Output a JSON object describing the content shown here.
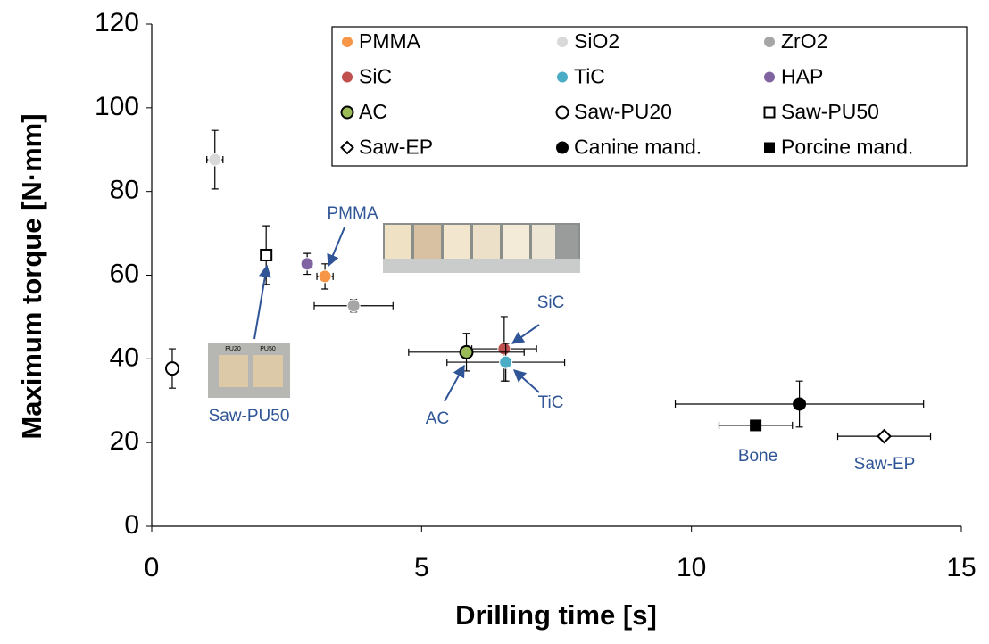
{
  "chart_data": {
    "type": "scatter",
    "x_label": "Drilling time [s]",
    "y_label": "Maximum torque [N·mm]",
    "xlim": [
      0,
      15
    ],
    "xticks": [
      0,
      5,
      10,
      15
    ],
    "ylim": [
      0,
      120
    ],
    "yticks": [
      0,
      20,
      40,
      60,
      80,
      100,
      120
    ],
    "grid": false,
    "legend": "upper right",
    "series": [
      {
        "name": "PMMA",
        "color": "#f79646",
        "marker": "circle-filled",
        "x": [
          3.21
        ],
        "values": [
          59.7
        ],
        "xerr": [
          0.15
        ],
        "yerr": [
          3
        ]
      },
      {
        "name": "SiO2",
        "color": "#d9d9d9",
        "marker": "circle-filled",
        "x": [
          1.17
        ],
        "values": [
          87.6
        ],
        "xerr": [
          0.15
        ],
        "yerr": [
          7
        ]
      },
      {
        "name": "ZrO2",
        "color": "#a6a6a6",
        "marker": "circle-filled",
        "x": [
          3.74
        ],
        "values": [
          52.7
        ],
        "xerr": [
          0.73
        ],
        "yerr": [
          1.5
        ]
      },
      {
        "name": "SiC",
        "color": "#c0504d",
        "marker": "circle-filled",
        "x": [
          6.53
        ],
        "values": [
          42.4
        ],
        "xerr": [
          0.6
        ],
        "yerr": [
          7.7
        ]
      },
      {
        "name": "TiC",
        "color": "#4bacc6",
        "marker": "circle-filled",
        "x": [
          6.56
        ],
        "values": [
          39.2
        ],
        "xerr": [
          1.09
        ],
        "yerr": [
          4.5
        ]
      },
      {
        "name": "HAP",
        "color": "#8064a2",
        "marker": "circle-filled",
        "x": [
          2.88
        ],
        "values": [
          62.7
        ],
        "xerr": [
          0.1
        ],
        "yerr": [
          2.5
        ]
      },
      {
        "name": "AC",
        "color": "#9bbb59",
        "marker": "circle-edged",
        "x": [
          5.83
        ],
        "values": [
          41.6
        ],
        "xerr": [
          1.07
        ],
        "yerr": [
          4.5
        ]
      },
      {
        "name": "Saw-PU20",
        "color": "#000000",
        "marker": "circle-open",
        "x": [
          0.38
        ],
        "values": [
          37.7
        ],
        "xerr": [
          0
        ],
        "yerr": [
          4.7
        ]
      },
      {
        "name": "Saw-PU50",
        "color": "#000000",
        "marker": "square-open",
        "x": [
          2.12
        ],
        "values": [
          64.8
        ],
        "xerr": [
          0
        ],
        "yerr": [
          7
        ]
      },
      {
        "name": "Saw-EP",
        "color": "#000000",
        "marker": "diamond-open",
        "x": [
          13.57
        ],
        "values": [
          21.5
        ],
        "xerr": [
          0.86
        ],
        "yerr": [
          0.5
        ]
      },
      {
        "name": "Canine mand.",
        "color": "#000000",
        "marker": "circle-filled",
        "x": [
          12.0
        ],
        "values": [
          29.2
        ],
        "xerr": [
          2.3
        ],
        "yerr": [
          5.5
        ]
      },
      {
        "name": "Porcine mand.",
        "color": "#000000",
        "marker": "square-filled",
        "x": [
          11.19
        ],
        "values": [
          24.1
        ],
        "xerr": [
          0.68
        ],
        "yerr": [
          0.8
        ]
      }
    ],
    "annotations": [
      "PMMA",
      "SiC",
      "TiC",
      "AC",
      "Saw-PU50",
      "Bone",
      "Saw-EP"
    ],
    "photo_labels": [
      "PU20",
      "PU50"
    ]
  }
}
